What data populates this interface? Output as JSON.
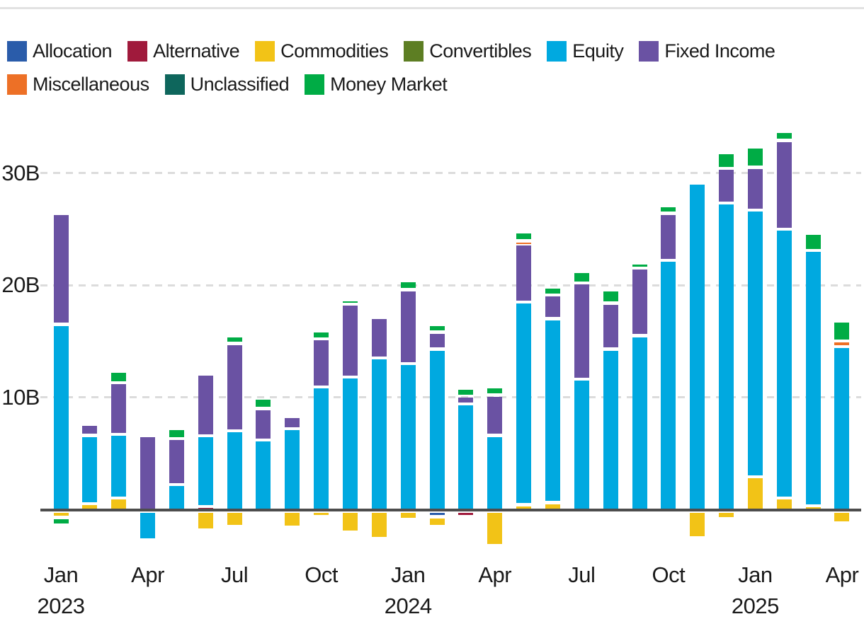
{
  "chart_data": {
    "type": "bar",
    "stacked": true,
    "title": "",
    "unit": "billions (B)",
    "xlabel": "",
    "ylabel": "",
    "ylim": [
      -4,
      34
    ],
    "grid": "horizontal-dashed",
    "legend_position": "top",
    "categories": [
      "Jan 2023",
      "Feb 2023",
      "Mar 2023",
      "Apr 2023",
      "May 2023",
      "Jun 2023",
      "Jul 2023",
      "Aug 2023",
      "Sep 2023",
      "Oct 2023",
      "Nov 2023",
      "Dec 2023",
      "Jan 2024",
      "Feb 2024",
      "Mar 2024",
      "Apr 2024",
      "May 2024",
      "Jun 2024",
      "Jul 2024",
      "Aug 2024",
      "Sep 2024",
      "Oct 2024",
      "Nov 2024",
      "Dec 2024",
      "Jan 2025",
      "Feb 2025",
      "Mar 2025",
      "Apr 2025"
    ],
    "series": [
      {
        "name": "Allocation",
        "color": "#2A5CAA",
        "values": [
          0,
          0,
          0,
          0,
          0,
          0,
          0,
          0,
          0,
          0,
          0,
          0,
          0,
          -0.35,
          0,
          0,
          0,
          0,
          0,
          0,
          0,
          0,
          0,
          0,
          0,
          0,
          0,
          0
        ]
      },
      {
        "name": "Alternative",
        "color": "#A01A3C",
        "values": [
          0,
          0,
          0,
          0,
          0,
          0.25,
          0,
          0,
          0,
          0,
          0,
          0,
          0,
          0,
          -0.25,
          0,
          0,
          0,
          0,
          0,
          0,
          0,
          0,
          0,
          0,
          0,
          0,
          0
        ]
      },
      {
        "name": "Commodities",
        "color": "#F2C317",
        "values": [
          -0.4,
          0.5,
          1.0,
          0,
          0,
          -1.5,
          -1.2,
          0,
          -1.3,
          -0.1,
          -1.7,
          -2.3,
          -0.6,
          -0.85,
          0,
          -2.9,
          0.4,
          0.6,
          0,
          0,
          0,
          0,
          -2.2,
          -0.5,
          2.9,
          1.0,
          0.3,
          -0.9
        ]
      },
      {
        "name": "Convertibles",
        "color": "#5D7E23",
        "values": [
          0,
          0,
          0,
          0,
          0,
          0,
          0,
          0,
          0,
          0,
          0,
          0,
          0,
          0,
          0,
          0,
          0,
          0,
          0,
          0,
          0,
          0,
          0,
          0,
          0,
          0,
          0,
          0
        ]
      },
      {
        "name": "Equity",
        "color": "#00A9E0",
        "values": [
          16.5,
          6.1,
          5.7,
          -2.4,
          2.2,
          6.3,
          7.0,
          6.2,
          7.2,
          10.9,
          11.8,
          13.5,
          13.0,
          14.3,
          9.4,
          6.6,
          18.1,
          16.4,
          11.6,
          14.3,
          15.5,
          22.2,
          29.1,
          27.3,
          23.8,
          24.0,
          22.8,
          14.5
        ]
      },
      {
        "name": "Fixed Income",
        "color": "#6A52A3",
        "values": [
          9.9,
          1.0,
          4.6,
          6.6,
          4.1,
          5.5,
          7.8,
          2.8,
          1.1,
          4.3,
          6.5,
          3.6,
          6.6,
          1.5,
          0.7,
          3.6,
          5.2,
          2.1,
          8.6,
          4.1,
          6.0,
          4.2,
          0,
          3.1,
          3.8,
          7.9,
          0,
          0
        ]
      },
      {
        "name": "Miscellaneous",
        "color": "#ED7026",
        "values": [
          0,
          0,
          0,
          0,
          0,
          0,
          0,
          0,
          0,
          0,
          0,
          0,
          0,
          0,
          0,
          0,
          0.25,
          0,
          0,
          0,
          0,
          0,
          0,
          0,
          0,
          0,
          0,
          0.5
        ]
      },
      {
        "name": "Unclassified",
        "color": "#0E665C",
        "values": [
          0,
          0,
          0,
          0,
          0,
          0,
          0,
          0,
          0,
          0,
          0,
          0,
          0,
          0,
          0,
          0,
          0,
          0,
          0,
          0,
          0,
          0,
          0,
          0,
          0,
          0,
          0,
          0
        ]
      },
      {
        "name": "Money Market",
        "color": "#00AC45",
        "values": [
          -0.7,
          0,
          1.0,
          0,
          0.9,
          0,
          0.7,
          0.9,
          0,
          0.7,
          0.4,
          0,
          0.8,
          0.7,
          0.7,
          0.7,
          0.8,
          0.7,
          1.0,
          1.2,
          0.5,
          0.7,
          0,
          1.4,
          1.8,
          0.8,
          1.5,
          1.8
        ]
      }
    ],
    "yticks": [
      {
        "label": "10B",
        "value": 10
      },
      {
        "label": "20B",
        "value": 20
      },
      {
        "label": "30B",
        "value": 30
      }
    ],
    "xticks": [
      {
        "index": 0,
        "label": "Jan",
        "year": "2023"
      },
      {
        "index": 3,
        "label": "Apr",
        "year": ""
      },
      {
        "index": 6,
        "label": "Jul",
        "year": ""
      },
      {
        "index": 9,
        "label": "Oct",
        "year": ""
      },
      {
        "index": 12,
        "label": "Jan",
        "year": "2024"
      },
      {
        "index": 15,
        "label": "Apr",
        "year": ""
      },
      {
        "index": 18,
        "label": "Jul",
        "year": ""
      },
      {
        "index": 21,
        "label": "Oct",
        "year": ""
      },
      {
        "index": 24,
        "label": "Jan",
        "year": "2025"
      },
      {
        "index": 27,
        "label": "Apr",
        "year": ""
      }
    ],
    "style": {
      "grid_color": "#dcdcdc",
      "axis_color": "#4d4d4d",
      "text_color": "#1a1a1a",
      "divider_color": "#e2e2e2",
      "background": "#ffffff"
    }
  }
}
